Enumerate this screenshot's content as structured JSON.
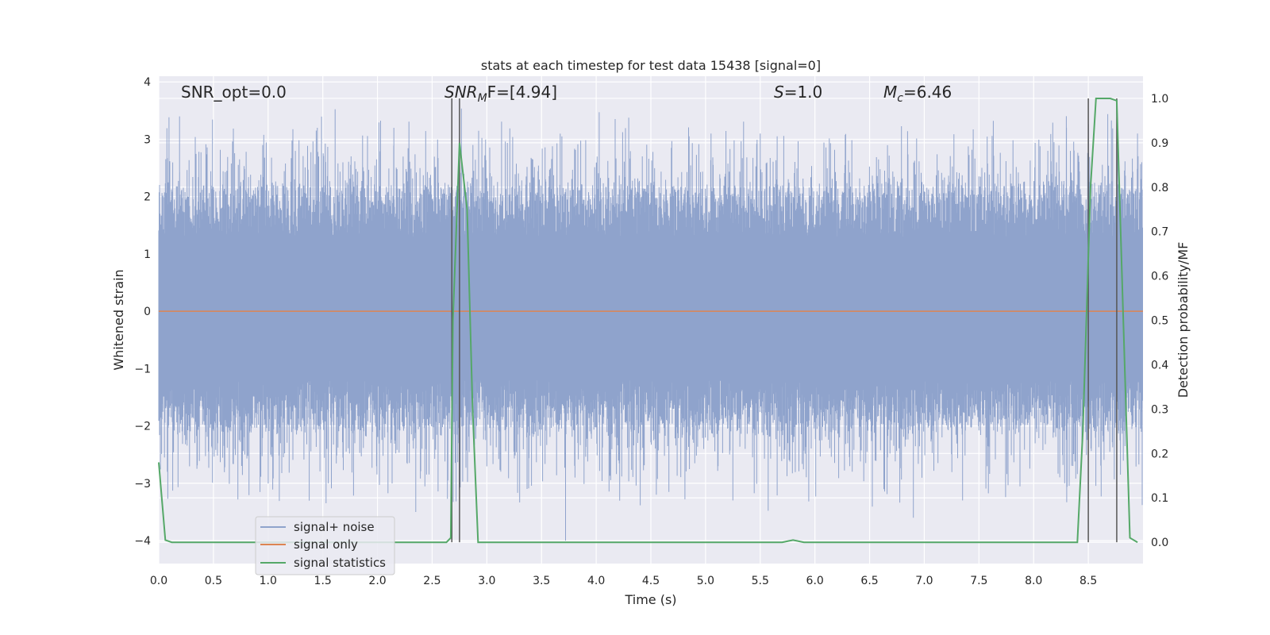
{
  "chart_data": {
    "type": "line",
    "title": "stats at each timestep for test data 15438 [signal=0]",
    "xlabel": "Time (s)",
    "ylabel": "Whitened strain",
    "y2label": "Detection probability/MF",
    "xlim": [
      0.0,
      9.0
    ],
    "ylim": [
      -4.4,
      4.1
    ],
    "y2lim": [
      -0.048,
      1.05
    ],
    "grid": true,
    "legend_position": "bottom-left",
    "xticks": [
      "0.0",
      "0.5",
      "1.0",
      "1.5",
      "2.0",
      "2.5",
      "3.0",
      "3.5",
      "4.0",
      "4.5",
      "5.0",
      "5.5",
      "6.0",
      "6.5",
      "7.0",
      "7.5",
      "8.0",
      "8.5"
    ],
    "xtick_values": [
      0.0,
      0.5,
      1.0,
      1.5,
      2.0,
      2.5,
      3.0,
      3.5,
      4.0,
      4.5,
      5.0,
      5.5,
      6.0,
      6.5,
      7.0,
      7.5,
      8.0,
      8.5
    ],
    "yticks": [
      "−4",
      "−3",
      "−2",
      "−1",
      "0",
      "1",
      "2",
      "3",
      "4"
    ],
    "ytick_values": [
      -4,
      -3,
      -2,
      -1,
      0,
      1,
      2,
      3,
      4
    ],
    "y2ticks": [
      "0.0",
      "0.1",
      "0.2",
      "0.3",
      "0.4",
      "0.5",
      "0.6",
      "0.7",
      "0.8",
      "0.9",
      "1.0"
    ],
    "y2tick_values": [
      0.0,
      0.1,
      0.2,
      0.3,
      0.4,
      0.5,
      0.6,
      0.7,
      0.8,
      0.9,
      1.0
    ],
    "annotations": {
      "snr_opt": "SNR_opt=0.0",
      "snr_mf_base": "SNR",
      "snr_mf_sub": "M",
      "snr_mf_rest": "F=[4.94]",
      "s_label": "S",
      "s_value": "=1.0",
      "mc_base": "M",
      "mc_sub": "c",
      "mc_value": "=6.46"
    },
    "vlines": [
      2.68,
      2.75,
      8.5,
      8.76
    ],
    "series": [
      {
        "name": "signal+ noise",
        "color": "#8fa3cc",
        "kind": "noise",
        "typical_min": -1.7,
        "typical_max": 1.8,
        "peaks": [
          {
            "x": 0.19,
            "y": 3.4
          },
          {
            "x": 0.95,
            "y": 2.9
          },
          {
            "x": 1.45,
            "y": 3.2
          },
          {
            "x": 2.15,
            "y": 3.2
          },
          {
            "x": 4.85,
            "y": 3.05
          },
          {
            "x": 5.05,
            "y": 3.1
          },
          {
            "x": 5.5,
            "y": 3.1
          },
          {
            "x": 8.3,
            "y": 3.2
          },
          {
            "x": 8.95,
            "y": 3.1
          }
        ],
        "troughs": [
          {
            "x": 2.35,
            "y": -3.5
          },
          {
            "x": 3.72,
            "y": -4.0
          },
          {
            "x": 5.25,
            "y": -3.3
          },
          {
            "x": 6.9,
            "y": -3.6
          },
          {
            "x": 7.35,
            "y": -3.3
          },
          {
            "x": 1.55,
            "y": -3.0
          },
          {
            "x": 4.55,
            "y": -3.2
          },
          {
            "x": 0.08,
            "y": -2.7
          }
        ]
      },
      {
        "name": "signal only",
        "color": "#dd8452",
        "axis": "left",
        "x": [
          0.0,
          9.0
        ],
        "y": [
          0.0,
          0.0
        ]
      },
      {
        "name": "signal statistics",
        "color": "#55a868",
        "axis": "right",
        "x": [
          0.0,
          0.06,
          0.12,
          0.5,
          1.0,
          1.5,
          2.0,
          2.5,
          2.63,
          2.67,
          2.69,
          2.75,
          2.82,
          2.87,
          2.92,
          3.0,
          3.5,
          4.0,
          4.5,
          5.0,
          5.5,
          5.7,
          5.8,
          5.9,
          6.0,
          6.5,
          7.0,
          7.5,
          8.0,
          8.4,
          8.45,
          8.52,
          8.57,
          8.6,
          8.65,
          8.7,
          8.76,
          8.82,
          8.88,
          8.95
        ],
        "y": [
          0.18,
          0.005,
          0.0,
          0.0,
          0.0,
          0.0,
          0.0,
          0.0,
          0.0,
          0.01,
          0.5,
          0.9,
          0.75,
          0.3,
          0.0,
          0.0,
          0.0,
          0.0,
          0.0,
          0.0,
          0.0,
          0.0,
          0.005,
          0.0,
          0.0,
          0.0,
          0.0,
          0.0,
          0.0,
          0.0,
          0.25,
          0.8,
          1.0,
          1.0,
          1.0,
          1.0,
          0.995,
          0.5,
          0.01,
          0.0
        ]
      }
    ]
  }
}
